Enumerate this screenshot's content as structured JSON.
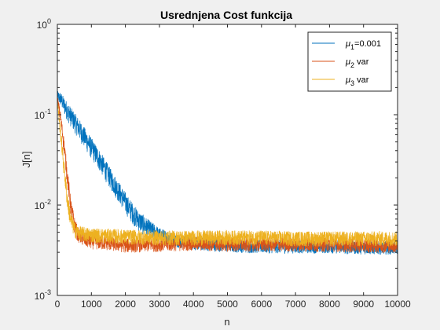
{
  "chart_data": {
    "type": "line",
    "title": "Usrednjena Cost funkcija",
    "xlabel": "n",
    "ylabel": "J[n]",
    "xlim": [
      0,
      10000
    ],
    "ylim": [
      0.001,
      1
    ],
    "yscale": "log",
    "grid": false,
    "legend_position": "top-right",
    "x_ticks": [
      0,
      1000,
      2000,
      3000,
      4000,
      5000,
      6000,
      7000,
      8000,
      9000,
      10000
    ],
    "x_tick_labels": [
      "0",
      "1000",
      "2000",
      "3000",
      "4000",
      "5000",
      "6000",
      "7000",
      "8000",
      "9000",
      "10000"
    ],
    "y_ticks": [
      0.001,
      0.01,
      0.1,
      1
    ],
    "y_tick_labels": [
      {
        "base": "10",
        "exp": "-3"
      },
      {
        "base": "10",
        "exp": "-2"
      },
      {
        "base": "10",
        "exp": "-1"
      },
      {
        "base": "10",
        "exp": "0"
      }
    ],
    "series": [
      {
        "legend": {
          "symbol": "μ",
          "sub": "1",
          "suffix": "=0.001"
        },
        "color": "#0072BD",
        "x": [
          0,
          100,
          300,
          600,
          900,
          1200,
          1500,
          1800,
          2100,
          2400,
          2700,
          3000,
          3500,
          4000,
          5000,
          6000,
          7000,
          8000,
          9000,
          10000
        ],
        "y": [
          0.16,
          0.15,
          0.11,
          0.075,
          0.05,
          0.034,
          0.022,
          0.0145,
          0.0095,
          0.0068,
          0.0055,
          0.0047,
          0.0041,
          0.0038,
          0.0036,
          0.0035,
          0.0035,
          0.0035,
          0.0034,
          0.0034
        ],
        "noise_pct": [
          12,
          15,
          20,
          22,
          22,
          22,
          22,
          22,
          22,
          22,
          20,
          16,
          14,
          14,
          14,
          14,
          14,
          14,
          14,
          14
        ]
      },
      {
        "legend": {
          "symbol": "μ",
          "sub": "2",
          "suffix": " var"
        },
        "color": "#D95319",
        "x": [
          0,
          100,
          200,
          300,
          400,
          500,
          600,
          800,
          1000,
          1500,
          2000,
          3000,
          4000,
          5000,
          6000,
          7000,
          8000,
          9000,
          10000
        ],
        "y": [
          0.15,
          0.09,
          0.045,
          0.02,
          0.0095,
          0.0062,
          0.0048,
          0.0042,
          0.004,
          0.0038,
          0.0036,
          0.0037,
          0.0038,
          0.0037,
          0.0037,
          0.0037,
          0.0037,
          0.0036,
          0.0036
        ],
        "noise_pct": [
          10,
          14,
          18,
          20,
          20,
          18,
          16,
          16,
          16,
          15,
          15,
          15,
          15,
          15,
          15,
          15,
          15,
          15,
          15
        ]
      },
      {
        "legend": {
          "symbol": "μ",
          "sub": "3",
          "suffix": " var"
        },
        "color": "#EDB120",
        "x": [
          0,
          100,
          200,
          300,
          400,
          500,
          600,
          800,
          1000,
          1500,
          2000,
          3000,
          4000,
          5000,
          6000,
          7000,
          8000,
          9000,
          10000
        ],
        "y": [
          0.14,
          0.06,
          0.025,
          0.011,
          0.0068,
          0.0055,
          0.005,
          0.0048,
          0.0047,
          0.0046,
          0.0045,
          0.0044,
          0.0044,
          0.0044,
          0.0044,
          0.0043,
          0.0043,
          0.0043,
          0.0043
        ],
        "noise_pct": [
          10,
          15,
          18,
          20,
          18,
          17,
          16,
          16,
          16,
          16,
          16,
          16,
          16,
          16,
          16,
          16,
          16,
          16,
          16
        ]
      }
    ]
  }
}
